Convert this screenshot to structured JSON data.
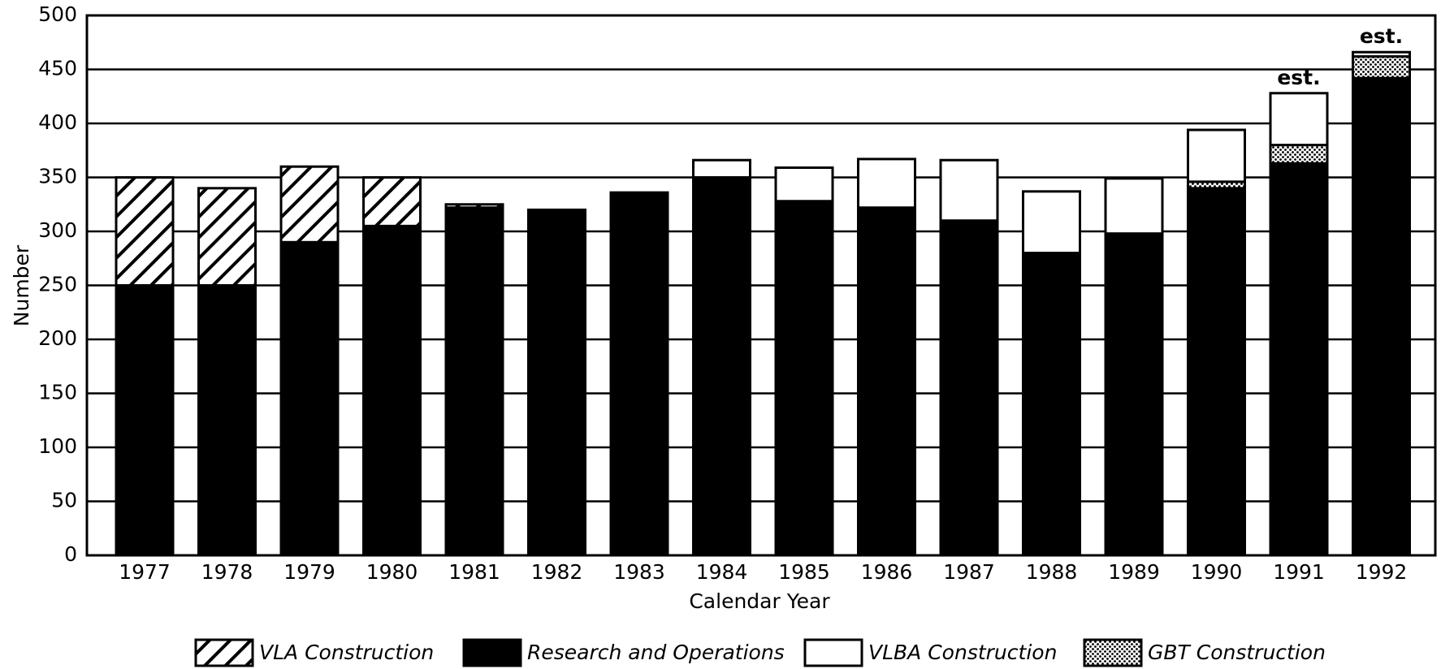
{
  "chart_data": {
    "type": "bar",
    "stacked": true,
    "x_label": "Calendar Year",
    "y_label": "Number",
    "categories": [
      "1977",
      "1978",
      "1979",
      "1980",
      "1981",
      "1982",
      "1983",
      "1984",
      "1985",
      "1986",
      "1987",
      "1988",
      "1989",
      "1990",
      "1991",
      "1992"
    ],
    "series": [
      {
        "name": "VLA Construction",
        "color": "#000000",
        "pattern": "hatch",
        "values": [
          100,
          90,
          70,
          45,
          3,
          0,
          0,
          0,
          0,
          0,
          0,
          0,
          0,
          0,
          0,
          0
        ]
      },
      {
        "name": "Research and Operations",
        "color": "#000000",
        "pattern": "solid",
        "values": [
          250,
          250,
          290,
          305,
          322,
          320,
          336,
          350,
          328,
          322,
          310,
          280,
          298,
          340,
          363,
          442
        ]
      },
      {
        "name": "VLBA Construction",
        "color": "#ffffff",
        "pattern": "solid",
        "values": [
          0,
          0,
          0,
          0,
          0,
          0,
          0,
          16,
          31,
          45,
          56,
          57,
          51,
          48,
          48,
          4
        ]
      },
      {
        "name": "GBT Construction",
        "color": "#000000",
        "pattern": "dots",
        "values": [
          0,
          0,
          0,
          0,
          0,
          0,
          0,
          0,
          0,
          0,
          0,
          0,
          0,
          6,
          17,
          20
        ]
      }
    ],
    "annotations": [
      {
        "text": "est.",
        "category": "1991"
      },
      {
        "text": "est.",
        "category": "1992"
      }
    ],
    "ylim": [
      0,
      500
    ],
    "yticks": [
      0,
      50,
      100,
      150,
      200,
      250,
      300,
      350,
      400,
      450,
      500
    ],
    "grid": true,
    "legend": "bottom"
  }
}
